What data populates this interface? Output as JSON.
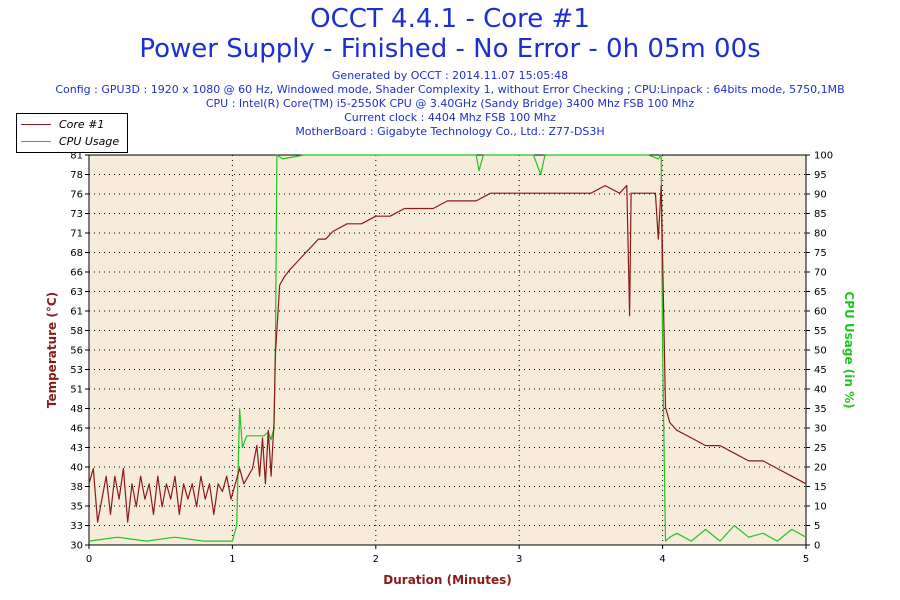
{
  "header": {
    "title": "OCCT 4.4.1 - Core #1",
    "subtitle": "Power Supply - Finished - No Error - 0h 05m 00s",
    "generated": "Generated by OCCT : 2014.11.07 15:05:48",
    "config": "Config : GPU3D : 1920 x 1080 @ 60 Hz, Windowed mode, Shader Complexity 1, without Error Checking ; CPU:Linpack : 64bits mode, 5750,1MB",
    "cpu": "CPU : Intel(R) Core(TM) i5-2550K CPU @ 3.40GHz (Sandy Bridge) 3400 Mhz FSB 100 Mhz",
    "clock": "Current clock : 4404 Mhz FSB 100 Mhz",
    "motherboard": "MotherBoard : Gigabyte Technology Co., Ltd.: Z77-DS3H"
  },
  "colors": {
    "plot_bg": "#f6ecd9",
    "grid": "#000000",
    "temp": "#8b1a1a",
    "usage": "#22c422",
    "title": "#1c2fd1"
  },
  "chart_data": {
    "type": "line",
    "xlabel": "Duration (Minutes)",
    "ylabel_left": "Temperature (°C)",
    "ylabel_right": "CPU Usage (in %)",
    "xlim": [
      0,
      5
    ],
    "ylim_left": [
      30,
      81
    ],
    "ylim_right": [
      0,
      100
    ],
    "x_ticks": [
      "0",
      "1",
      "2",
      "3",
      "4",
      "5"
    ],
    "y_left_ticks": [
      "30",
      "33",
      "35",
      "38",
      "40",
      "43",
      "46",
      "48",
      "51",
      "53",
      "56",
      "58",
      "61",
      "63",
      "66",
      "68",
      "71",
      "73",
      "76",
      "78",
      "81"
    ],
    "y_right_ticks": [
      "0",
      "5",
      "10",
      "15",
      "20",
      "25",
      "30",
      "35",
      "40",
      "45",
      "50",
      "55",
      "60",
      "65",
      "70",
      "75",
      "80",
      "85",
      "90",
      "95",
      "100"
    ],
    "grid": true,
    "legend_position": "top-left",
    "series": [
      {
        "name": "Core #1",
        "axis": "left",
        "x": [
          0,
          0.03,
          0.06,
          0.09,
          0.12,
          0.15,
          0.18,
          0.21,
          0.24,
          0.27,
          0.3,
          0.33,
          0.36,
          0.39,
          0.42,
          0.45,
          0.48,
          0.51,
          0.54,
          0.57,
          0.6,
          0.63,
          0.66,
          0.69,
          0.72,
          0.75,
          0.78,
          0.81,
          0.84,
          0.87,
          0.9,
          0.93,
          0.96,
          0.99,
          1.02,
          1.05,
          1.08,
          1.11,
          1.14,
          1.17,
          1.19,
          1.21,
          1.23,
          1.25,
          1.27,
          1.29,
          1.3,
          1.33,
          1.36,
          1.4,
          1.45,
          1.5,
          1.55,
          1.6,
          1.65,
          1.7,
          1.8,
          1.9,
          2.0,
          2.1,
          2.2,
          2.3,
          2.4,
          2.5,
          2.6,
          2.7,
          2.8,
          2.9,
          3.0,
          3.1,
          3.2,
          3.3,
          3.4,
          3.5,
          3.6,
          3.7,
          3.75,
          3.77,
          3.78,
          3.8,
          3.85,
          3.9,
          3.95,
          3.97,
          3.99,
          4.02,
          4.05,
          4.1,
          4.2,
          4.3,
          4.4,
          4.5,
          4.6,
          4.7,
          4.8,
          4.9,
          5.0
        ],
        "y": [
          38,
          40,
          33,
          36,
          39,
          34,
          39,
          36,
          40,
          33,
          38,
          35,
          39,
          36,
          38,
          34,
          39,
          35,
          38,
          36,
          39,
          34,
          38,
          36,
          38,
          35,
          39,
          36,
          38,
          34,
          38,
          37,
          39,
          36,
          38,
          40,
          38,
          39,
          40,
          43,
          39,
          44,
          38,
          45,
          39,
          46,
          55,
          64,
          65,
          66,
          67,
          68,
          69,
          70,
          70,
          71,
          72,
          72,
          73,
          73,
          74,
          74,
          74,
          75,
          75,
          75,
          76,
          76,
          76,
          76,
          76,
          76,
          76,
          76,
          77,
          76,
          77,
          60,
          76,
          76,
          76,
          76,
          76,
          70,
          77,
          48,
          46,
          45,
          44,
          43,
          43,
          42,
          41,
          41,
          40,
          39,
          38
        ]
      },
      {
        "name": "CPU Usage",
        "axis": "right",
        "x": [
          0,
          0.2,
          0.4,
          0.6,
          0.8,
          1.0,
          1.03,
          1.05,
          1.07,
          1.1,
          1.13,
          1.18,
          1.22,
          1.25,
          1.27,
          1.29,
          1.3,
          1.31,
          1.35,
          1.5,
          1.7,
          1.9,
          2.1,
          2.3,
          2.5,
          2.7,
          2.72,
          2.75,
          2.9,
          3.1,
          3.15,
          3.18,
          3.3,
          3.5,
          3.7,
          3.9,
          3.97,
          3.99,
          4.0,
          4.02,
          4.05,
          4.1,
          4.2,
          4.3,
          4.4,
          4.5,
          4.6,
          4.7,
          4.8,
          4.9,
          5.0
        ],
        "y": [
          1,
          2,
          1,
          2,
          1,
          1,
          5,
          35,
          25,
          28,
          28,
          28,
          28,
          29,
          27,
          30,
          50,
          100,
          99,
          100,
          100,
          100,
          100,
          100,
          100,
          100,
          96,
          100,
          100,
          100,
          95,
          100,
          100,
          100,
          100,
          100,
          99,
          100,
          50,
          1,
          2,
          3,
          1,
          4,
          1,
          5,
          2,
          3,
          1,
          4,
          2
        ]
      }
    ]
  }
}
